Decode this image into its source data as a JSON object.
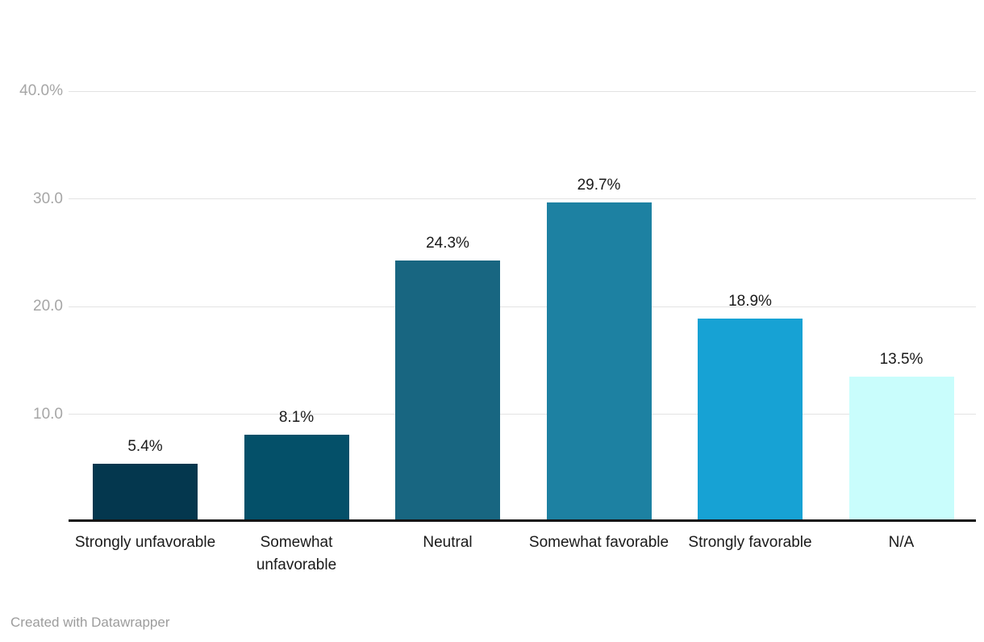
{
  "chart_data": {
    "type": "bar",
    "title": "",
    "xlabel": "",
    "ylabel": "",
    "categories": [
      "Strongly unfavorable",
      "Somewhat unfavorable",
      "Neutral",
      "Somewhat favorable",
      "Strongly favorable",
      "N/A"
    ],
    "values": [
      5.4,
      8.1,
      24.3,
      29.7,
      18.9,
      13.5
    ],
    "value_labels": [
      "5.4%",
      "8.1%",
      "24.3%",
      "29.7%",
      "18.9%",
      "13.5%"
    ],
    "bar_colors": [
      "#04374e",
      "#045069",
      "#186681",
      "#1d81a2",
      "#17a2d4",
      "#c9fdfc"
    ],
    "yticks": [
      {
        "value": 10,
        "label": "10.0"
      },
      {
        "value": 20,
        "label": "20.0"
      },
      {
        "value": 30,
        "label": "30.0"
      },
      {
        "value": 40,
        "label": "40.0%"
      }
    ],
    "ylim": [
      0,
      40
    ],
    "grid": true,
    "legend": "none"
  },
  "colors": {
    "background": "#ffffff",
    "grid": "#e3e3e3",
    "axis": "#141414",
    "tick_label": "#a6a6a6",
    "value_label": "#1a1a1a",
    "category_label": "#1a1a1a",
    "footer": "#9c9c9c"
  },
  "footer": {
    "attribution": "Created with Datawrapper"
  }
}
